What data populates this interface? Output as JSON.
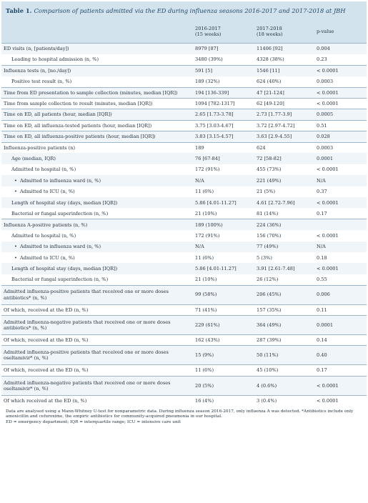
{
  "title": {
    "label": "Table 1.",
    "text": "Comparison of patients admitted via the ED during influenza seasons 2016-2017 and 2017-2018 at JBH"
  },
  "headers": {
    "label": "",
    "col1_line1": "2016-2017",
    "col1_line2": "(15 weeks)",
    "col2_line1": "2017-2018",
    "col2_line2": "(18 weeks)",
    "pvalue": "p-value"
  },
  "rows": [
    {
      "label": "ED visits (n, [patients/day])",
      "v1": "8979 [87]",
      "v2": "11406 [92]",
      "p": "0.004",
      "indent": 0,
      "bullet": false,
      "sep": true,
      "tall": false
    },
    {
      "label": "Leading to hospital admission (n, %)",
      "v1": "3480 (39%)",
      "v2": "4328 (38%)",
      "p": "0.23",
      "indent": 1,
      "bullet": false,
      "sep": false,
      "tall": false
    },
    {
      "label": "Influenza tests (n, [no./day])",
      "v1": "591 [5]",
      "v2": "1546 [11]",
      "p": "< 0.0001",
      "indent": 0,
      "bullet": false,
      "sep": true,
      "tall": false
    },
    {
      "label": "Positive test result (n, %)",
      "v1": "189 (32%)",
      "v2": "624 (40%)",
      "p": "0.0003",
      "indent": 1,
      "bullet": false,
      "sep": false,
      "tall": false
    },
    {
      "label": "Time from ED presentation to sample collection (minutes, median [IQR])",
      "v1": "194 [136-339]",
      "v2": "47 [21-124]",
      "p": "< 0.0001",
      "indent": 0,
      "bullet": false,
      "sep": true,
      "tall": false
    },
    {
      "label": "Time from sample collection to result (minutes, median [IQR])",
      "v1": "1094 [782-1317]",
      "v2": "62 [49-120]",
      "p": "< 0.0001",
      "indent": 0,
      "bullet": false,
      "sep": true,
      "tall": false
    },
    {
      "label": "Time on ED, all patients (hour, median [IQR])",
      "v1": "2.65 [1.73-3.78]",
      "v2": "2.73 [1.77-3.9]",
      "p": "0.0005",
      "indent": 0,
      "bullet": false,
      "sep": true,
      "tall": false
    },
    {
      "label": "Time on ED, all influenza-tested patients (hour, median [IQR])",
      "v1": "3.75 [3.03-4.67]",
      "v2": "3.72 [2.97-4.72]",
      "p": "0.51",
      "indent": 0,
      "bullet": false,
      "sep": true,
      "tall": false
    },
    {
      "label": "Time on ED, all influenza-positive patients (hour, median [IQR])",
      "v1": "3.83 [3.15-4.57]",
      "v2": "3.63 [2.9-4.55]",
      "p": "0.028",
      "indent": 0,
      "bullet": false,
      "sep": true,
      "tall": false
    },
    {
      "label": "Influenza-positive patients (n)",
      "v1": "189",
      "v2": "624",
      "p": "0.0003",
      "indent": 0,
      "bullet": false,
      "sep": true,
      "tall": false
    },
    {
      "label": "Age (median, IQR)",
      "v1": "76 [67-84]",
      "v2": "72 [58-82]",
      "p": "0.0001",
      "indent": 1,
      "bullet": false,
      "sep": false,
      "tall": false
    },
    {
      "label": "Admitted to hospital (n, %)",
      "v1": "172 (91%)",
      "v2": "455 (73%)",
      "p": "< 0.0001",
      "indent": 1,
      "bullet": false,
      "sep": false,
      "tall": false
    },
    {
      "label": "Admitted to influenza ward (n, %)",
      "v1": "N/A",
      "v2": "221 (49%)",
      "p": "N/A",
      "indent": 2,
      "bullet": true,
      "sep": false,
      "tall": false
    },
    {
      "label": "Admitted to ICU (n, %)",
      "v1": "11 (6%)",
      "v2": "21 (5%)",
      "p": "0.37",
      "indent": 2,
      "bullet": true,
      "sep": false,
      "tall": false
    },
    {
      "label": "Length of hospital stay (days, median [IQR])",
      "v1": "5.86 [4.01-11.27]",
      "v2": "4.61 [2.72-7.96]",
      "p": "< 0.0001",
      "indent": 1,
      "bullet": false,
      "sep": false,
      "tall": false
    },
    {
      "label": "Bacterial or fungal superinfection (n, %)",
      "v1": "21 (10%)",
      "v2": "81 (14%)",
      "p": "0.17",
      "indent": 1,
      "bullet": false,
      "sep": false,
      "tall": false
    },
    {
      "label": "Influenza A-positive patients (n, %)",
      "v1": "189 (100%)",
      "v2": "224 (36%)",
      "p": "",
      "indent": 0,
      "bullet": false,
      "sep": true,
      "tall": false
    },
    {
      "label": "Admitted to hospital (n, %)",
      "v1": "172 (91%)",
      "v2": "156 (70%)",
      "p": "< 0.0001",
      "indent": 1,
      "bullet": false,
      "sep": false,
      "tall": false
    },
    {
      "label": "Admitted to influenza ward (n, %)",
      "v1": "N/A",
      "v2": "77 (49%)",
      "p": "N/A",
      "indent": 2,
      "bullet": true,
      "sep": false,
      "tall": false
    },
    {
      "label": "Admitted to ICU (n, %)",
      "v1": "11 (6%)",
      "v2": "5 (3%)",
      "p": "0.18",
      "indent": 2,
      "bullet": true,
      "sep": false,
      "tall": false
    },
    {
      "label": "Length of hospital stay (days, median [IQR])",
      "v1": "5.86 [4.01-11.27]",
      "v2": "3.91 [2.61-7.48]",
      "p": "< 0.0001",
      "indent": 1,
      "bullet": false,
      "sep": false,
      "tall": false
    },
    {
      "label": "Bacterial or fungal superinfection (n, %)",
      "v1": "21 (10%)",
      "v2": "26 (12%)",
      "p": "0.55",
      "indent": 1,
      "bullet": false,
      "sep": false,
      "tall": false
    },
    {
      "label": "Admitted influenza-positive patients that received one or more doses antibiotics* (n, %)",
      "v1": "99 (58%)",
      "v2": "206 (45%)",
      "p": "0.006",
      "indent": 0,
      "bullet": false,
      "sep": true,
      "tall": true
    },
    {
      "label": "Of which, received at the ED (n, %)",
      "v1": "71 (41%)",
      "v2": "157 (35%)",
      "p": "0.11",
      "indent": 0,
      "bullet": false,
      "sep": true,
      "tall": false
    },
    {
      "label": "Admitted influenza-negative patients that received one or more doses antibiotics* (n, %)",
      "v1": "229 (61%)",
      "v2": "364 (49%)",
      "p": "0.0001",
      "indent": 0,
      "bullet": false,
      "sep": true,
      "tall": true
    },
    {
      "label": "Of which, received at the ED (n, %)",
      "v1": "162 (43%)",
      "v2": "287 (39%)",
      "p": "0.14",
      "indent": 0,
      "bullet": false,
      "sep": true,
      "tall": false
    },
    {
      "label": "Admitted influenza-positive patients that received one or more doses oseltamivir* (n, %)",
      "v1": "15 (9%)",
      "v2": "50 (11%)",
      "p": "0.40",
      "indent": 0,
      "bullet": false,
      "sep": true,
      "tall": true
    },
    {
      "label": "Of which, received at the ED (n, %)",
      "v1": "11 (6%)",
      "v2": "45 (10%)",
      "p": "0.17",
      "indent": 0,
      "bullet": false,
      "sep": true,
      "tall": false
    },
    {
      "label": "Admitted influenza-negative patients that received one or more doses oseltamivir* (n, %)",
      "v1": "20 (5%)",
      "v2": "4 (0.6%)",
      "p": "< 0.0001",
      "indent": 0,
      "bullet": false,
      "sep": true,
      "tall": true
    },
    {
      "label": "Of which received at the ED (n, %)",
      "v1": "16 (4%)",
      "v2": "3 (0.4%)",
      "p": "< 0.0001",
      "indent": 0,
      "bullet": false,
      "sep": true,
      "tall": false
    }
  ],
  "footnote": {
    "line1": "Data are analysed using a Mann-Whitney U-test for nonparametric data. During influenza season 2016-2017, only influenza A was detected. *Antibiotics include only amoxicillin and cefuroxime, the empiric antibiotics for community-acquired pneumonia in our hospital.",
    "line2": "ED = emergency department; IQR = interquartile range; ICU = intensive care unit"
  }
}
